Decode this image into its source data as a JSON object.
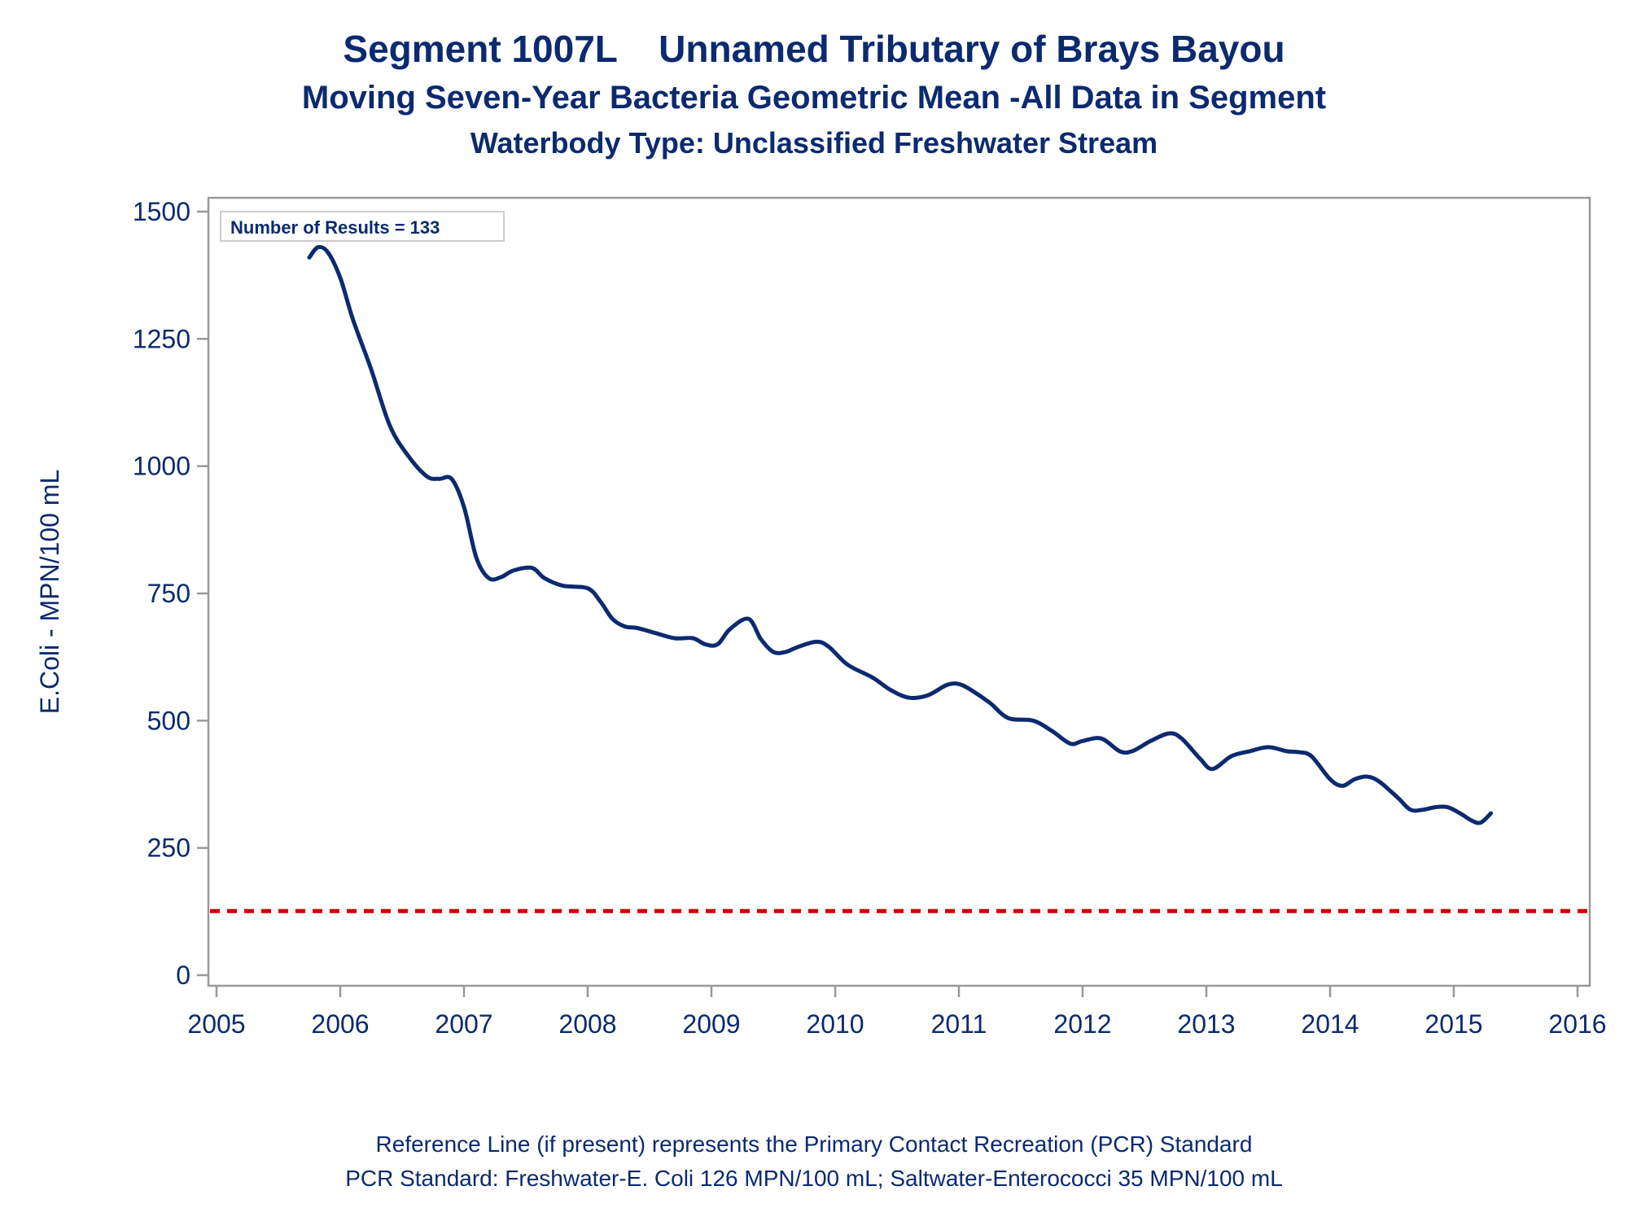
{
  "titles": {
    "title": "Segment 1007L    Unnamed Tributary of Brays Bayou",
    "subtitle": "Moving Seven-Year Bacteria Geometric Mean -All Data in Segment",
    "subtitle2": "Waterbody Type: Unclassified Freshwater Stream"
  },
  "footnotes": {
    "line1": "Reference Line (if present) represents the Primary Contact Recreation (PCR) Standard",
    "line2": "PCR Standard: Freshwater-E. Coli 126 MPN/100 mL; Saltwater-Enterococci 35 MPN/100 mL"
  },
  "colors": {
    "series": "#0b2a6f",
    "reference": "#cc0000",
    "frame": "#999999",
    "text": "#0b2a6f"
  },
  "chart_data": {
    "type": "line",
    "ylabel": "E.Coli - MPN/100 mL",
    "xlabel": "",
    "xlim": [
      2005,
      2016
    ],
    "ylim": [
      0,
      1500
    ],
    "xticks": [
      2005,
      2006,
      2007,
      2008,
      2009,
      2010,
      2011,
      2012,
      2013,
      2014,
      2015,
      2016
    ],
    "yticks": [
      0,
      250,
      500,
      750,
      1000,
      1250,
      1500
    ],
    "grid": false,
    "annotation": "Number of Results = 133",
    "reference_line": {
      "y": 126,
      "style": "dashed"
    },
    "series": [
      {
        "x": [
          2005.75,
          2005.82,
          2005.9,
          2006.0,
          2006.1,
          2006.25,
          2006.4,
          2006.55,
          2006.7,
          2006.8,
          2006.9,
          2007.0,
          2007.1,
          2007.2,
          2007.3,
          2007.4,
          2007.55,
          2007.65,
          2007.8,
          2008.0,
          2008.1,
          2008.2,
          2008.3,
          2008.4,
          2008.55,
          2008.7,
          2008.85,
          2008.95,
          2009.05,
          2009.15,
          2009.3,
          2009.4,
          2009.5,
          2009.6,
          2009.7,
          2009.85,
          2009.95,
          2010.1,
          2010.3,
          2010.45,
          2010.6,
          2010.75,
          2010.9,
          2011.0,
          2011.1,
          2011.25,
          2011.4,
          2011.6,
          2011.75,
          2011.9,
          2012.0,
          2012.15,
          2012.3,
          2012.4,
          2012.55,
          2012.7,
          2012.8,
          2012.95,
          2013.05,
          2013.2,
          2013.35,
          2013.5,
          2013.65,
          2013.75,
          2013.85,
          2014.0,
          2014.1,
          2014.2,
          2014.3,
          2014.4,
          2014.55,
          2014.65,
          2014.75,
          2014.85,
          2014.95,
          2015.05,
          2015.15,
          2015.22,
          2015.3
        ],
        "y": [
          1410,
          1430,
          1420,
          1370,
          1290,
          1190,
          1080,
          1020,
          980,
          975,
          975,
          920,
          820,
          780,
          782,
          795,
          800,
          780,
          765,
          760,
          735,
          700,
          685,
          682,
          672,
          662,
          662,
          650,
          650,
          680,
          700,
          660,
          635,
          635,
          645,
          655,
          645,
          610,
          585,
          560,
          545,
          550,
          570,
          572,
          560,
          535,
          505,
          500,
          480,
          455,
          460,
          465,
          440,
          440,
          460,
          475,
          465,
          425,
          405,
          430,
          440,
          448,
          440,
          438,
          430,
          385,
          372,
          385,
          390,
          380,
          348,
          325,
          325,
          330,
          330,
          318,
          303,
          300,
          318
        ]
      }
    ]
  }
}
